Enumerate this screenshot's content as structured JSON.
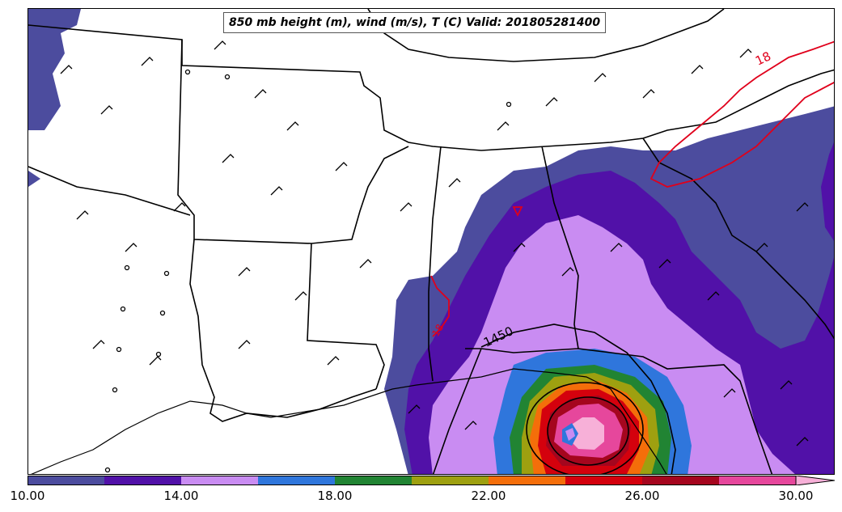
{
  "title": "850 mb height (m), wind (m/s), T (C) Valid: 201805281400",
  "contour_labels": {
    "temp_18_a": "18",
    "temp_18_b": "18",
    "height_1450": "1450"
  },
  "colorbar": {
    "colors": [
      "#4c4c9e",
      "#5111a8",
      "#c98cf2",
      "#2f76dc",
      "#218433",
      "#9ea010",
      "#f46e0a",
      "#d4010d",
      "#a5061e",
      "#e6479c",
      "#f7b0d8"
    ],
    "ticks": [
      "10.00",
      "14.00",
      "18.00",
      "22.00",
      "26.00",
      "30.00"
    ],
    "tick_values": [
      10,
      14,
      18,
      22,
      26,
      30
    ],
    "range": [
      10,
      31
    ],
    "extend": "max"
  },
  "layers": {
    "temperature_contour_color": "#e0001b",
    "height_contour_color": "#000000",
    "map_borders_color": "#000000"
  }
}
